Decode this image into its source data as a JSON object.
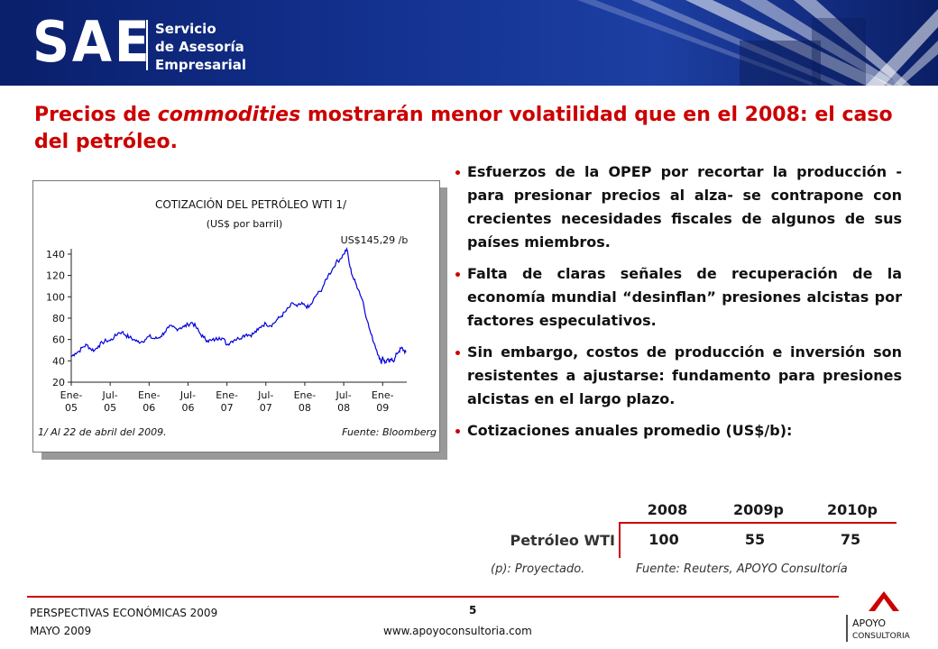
{
  "header": {
    "logo_text": "SAE",
    "subtitle_lines": [
      "Servicio",
      "de Asesoría",
      "Empresarial"
    ]
  },
  "title": {
    "part1": "Precios de ",
    "emphasis": "commodities",
    "part2": " mostrarán menor volatilidad que en el 2008: el caso del petróleo."
  },
  "bullets": [
    "Esfuerzos de la OPEP por recortar la producción -para presionar precios al alza- se contrapone con crecientes necesidades fiscales de algunos de sus países miembros.",
    "Falta de claras señales de recuperación de la economía mundial “desinflan” presiones alcistas por factores especulativos.",
    "Sin embargo, costos de producción e inversión son resistentes a ajustarse: fundamento para presiones alcistas en el largo plazo.",
    "Cotizaciones anuales promedio (US$/b):"
  ],
  "table": {
    "row_label": "Petróleo WTI",
    "columns": [
      "2008",
      "2009p",
      "2010p"
    ],
    "values": [
      "100",
      "55",
      "75"
    ],
    "note_left": "(p): Proyectado.",
    "note_right": "Fuente: Reuters, APOYO Consultoría"
  },
  "footer": {
    "line1": "PERSPECTIVAS ECONÓMICAS 2009",
    "line2": "MAYO 2009",
    "page": "5",
    "url": "www.apoyoconsultoria.com",
    "brand_line1": "APOYO",
    "brand_line2": "CONSULTORIA"
  },
  "colors": {
    "accent": "#cc0000",
    "header_blue": "#13318f",
    "series": "#0000dd"
  },
  "chart_data": {
    "type": "line",
    "title": "COTIZACIÓN DEL PETRÓLEO  WTI 1/",
    "subtitle": "(US$ por barril)",
    "peak_label": "US$145,29 /b",
    "footnote": "1/ Al 22 de abril del 2009.",
    "source": "Fuente: Bloomberg",
    "ylim": [
      20,
      145
    ],
    "yticks": [
      20,
      40,
      60,
      80,
      100,
      120,
      140
    ],
    "xlim": [
      2005.0,
      2009.31
    ],
    "xticks": [
      {
        "x": 2005.0,
        "l1": "Ene-",
        "l2": "05"
      },
      {
        "x": 2005.5,
        "l1": "Jul-",
        "l2": "05"
      },
      {
        "x": 2006.0,
        "l1": "Ene-",
        "l2": "06"
      },
      {
        "x": 2006.5,
        "l1": "Jul-",
        "l2": "06"
      },
      {
        "x": 2007.0,
        "l1": "Ene-",
        "l2": "07"
      },
      {
        "x": 2007.5,
        "l1": "Jul-",
        "l2": "07"
      },
      {
        "x": 2008.0,
        "l1": "Ene-",
        "l2": "08"
      },
      {
        "x": 2008.5,
        "l1": "Jul-",
        "l2": "08"
      },
      {
        "x": 2009.0,
        "l1": "Ene-",
        "l2": "09"
      }
    ],
    "series": [
      {
        "points": [
          [
            2005.0,
            44
          ],
          [
            2005.05,
            47
          ],
          [
            2005.1,
            49
          ],
          [
            2005.15,
            53
          ],
          [
            2005.2,
            55
          ],
          [
            2005.25,
            51
          ],
          [
            2005.3,
            50
          ],
          [
            2005.35,
            54
          ],
          [
            2005.4,
            57
          ],
          [
            2005.45,
            59
          ],
          [
            2005.5,
            59
          ],
          [
            2005.55,
            62
          ],
          [
            2005.6,
            66
          ],
          [
            2005.65,
            67
          ],
          [
            2005.7,
            64
          ],
          [
            2005.75,
            62
          ],
          [
            2005.8,
            60
          ],
          [
            2005.85,
            58
          ],
          [
            2005.9,
            58
          ],
          [
            2005.95,
            60
          ],
          [
            2006.0,
            63
          ],
          [
            2006.05,
            61
          ],
          [
            2006.1,
            61
          ],
          [
            2006.15,
            63
          ],
          [
            2006.2,
            67
          ],
          [
            2006.25,
            71
          ],
          [
            2006.3,
            72
          ],
          [
            2006.35,
            70
          ],
          [
            2006.4,
            71
          ],
          [
            2006.45,
            72
          ],
          [
            2006.5,
            74
          ],
          [
            2006.55,
            76
          ],
          [
            2006.6,
            72
          ],
          [
            2006.65,
            66
          ],
          [
            2006.7,
            62
          ],
          [
            2006.75,
            59
          ],
          [
            2006.8,
            59
          ],
          [
            2006.85,
            60
          ],
          [
            2006.9,
            62
          ],
          [
            2006.95,
            61
          ],
          [
            2007.0,
            55
          ],
          [
            2007.05,
            58
          ],
          [
            2007.1,
            60
          ],
          [
            2007.15,
            61
          ],
          [
            2007.2,
            63
          ],
          [
            2007.25,
            65
          ],
          [
            2007.3,
            64
          ],
          [
            2007.35,
            66
          ],
          [
            2007.4,
            69
          ],
          [
            2007.45,
            73
          ],
          [
            2007.5,
            75
          ],
          [
            2007.55,
            73
          ],
          [
            2007.6,
            75
          ],
          [
            2007.65,
            79
          ],
          [
            2007.7,
            82
          ],
          [
            2007.75,
            86
          ],
          [
            2007.8,
            90
          ],
          [
            2007.85,
            94
          ],
          [
            2007.9,
            91
          ],
          [
            2007.95,
            93
          ],
          [
            2008.0,
            92
          ],
          [
            2008.05,
            90
          ],
          [
            2008.1,
            95
          ],
          [
            2008.15,
            102
          ],
          [
            2008.2,
            105
          ],
          [
            2008.25,
            112
          ],
          [
            2008.3,
            120
          ],
          [
            2008.35,
            125
          ],
          [
            2008.4,
            132
          ],
          [
            2008.45,
            135
          ],
          [
            2008.5,
            140
          ],
          [
            2008.54,
            145
          ],
          [
            2008.58,
            128
          ],
          [
            2008.62,
            118
          ],
          [
            2008.66,
            112
          ],
          [
            2008.7,
            105
          ],
          [
            2008.75,
            95
          ],
          [
            2008.8,
            78
          ],
          [
            2008.85,
            65
          ],
          [
            2008.9,
            55
          ],
          [
            2008.95,
            45
          ],
          [
            2008.98,
            38
          ],
          [
            2009.0,
            44
          ],
          [
            2009.03,
            38
          ],
          [
            2009.06,
            41
          ],
          [
            2009.09,
            39
          ],
          [
            2009.12,
            42
          ],
          [
            2009.15,
            40
          ],
          [
            2009.18,
            47
          ],
          [
            2009.21,
            49
          ],
          [
            2009.24,
            52
          ],
          [
            2009.27,
            50
          ],
          [
            2009.3,
            48
          ]
        ]
      }
    ]
  }
}
